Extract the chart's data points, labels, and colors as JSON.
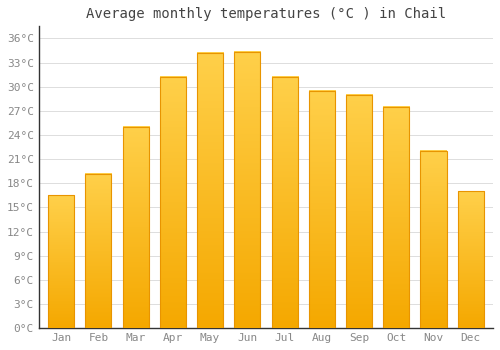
{
  "title": "Average monthly temperatures (°C ) in Chail",
  "months": [
    "Jan",
    "Feb",
    "Mar",
    "Apr",
    "May",
    "Jun",
    "Jul",
    "Aug",
    "Sep",
    "Oct",
    "Nov",
    "Dec"
  ],
  "values": [
    16.5,
    19.2,
    25.0,
    31.2,
    34.2,
    34.3,
    31.2,
    29.5,
    29.0,
    27.5,
    22.0,
    17.0
  ],
  "bar_color_top": "#FFD04A",
  "bar_color_bottom": "#F5A800",
  "bar_edge_color": "#E89400",
  "background_color": "#FFFFFF",
  "plot_bg_color": "#FFFFFF",
  "grid_color": "#DDDDDD",
  "yticks": [
    0,
    3,
    6,
    9,
    12,
    15,
    18,
    21,
    24,
    27,
    30,
    33,
    36
  ],
  "ylim": [
    0,
    37.5
  ],
  "title_fontsize": 10,
  "tick_fontsize": 8,
  "tick_color": "#888888",
  "title_color": "#444444",
  "spine_color": "#333333"
}
